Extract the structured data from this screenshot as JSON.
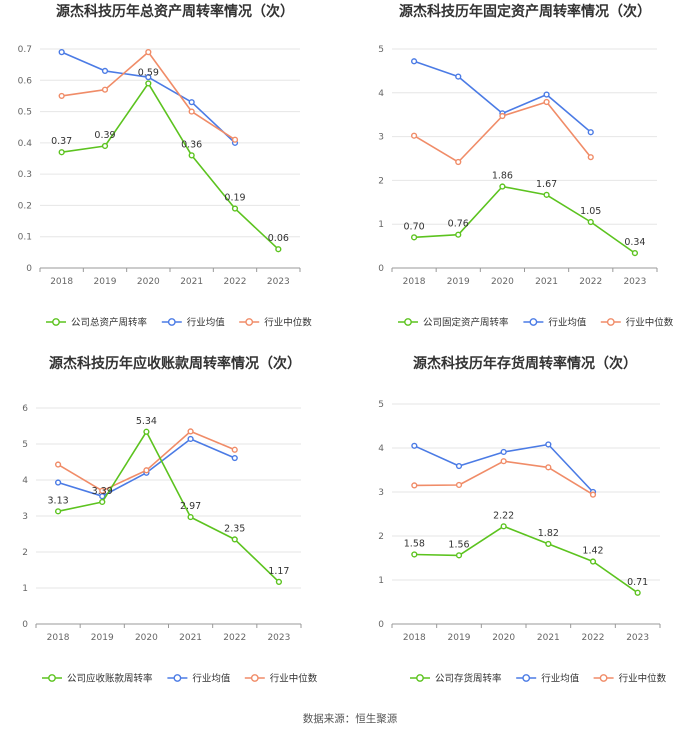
{
  "colors": {
    "company": "#5cc31f",
    "industry_avg": "#4b7be5",
    "industry_median": "#f08c68",
    "grid": "#e6e6e6",
    "axis": "#999999"
  },
  "legend_labels": {
    "industry_avg": "行业均值",
    "industry_median": "行业中位数"
  },
  "chart_data": [
    {
      "type": "line",
      "title": "源杰科技历年总资产周转率情况（次）",
      "x": [
        "2018",
        "2019",
        "2020",
        "2021",
        "2022",
        "2023"
      ],
      "ylim": [
        0,
        0.7
      ],
      "yticks": [
        "0",
        "0.1",
        "0.2",
        "0.3",
        "0.4",
        "0.5",
        "0.6",
        "0.7"
      ],
      "grid": true,
      "legend_position": "bottom",
      "series": [
        {
          "name": "公司总资产周转率",
          "role": "company",
          "values": [
            0.37,
            0.39,
            0.59,
            0.36,
            0.19,
            0.06
          ],
          "labels": [
            "0.37",
            "0.39",
            "0.59",
            "0.36",
            "0.19",
            "0.06"
          ]
        },
        {
          "name": "行业均值",
          "role": "industry_avg",
          "values": [
            0.69,
            0.63,
            0.61,
            0.53,
            0.4,
            null
          ]
        },
        {
          "name": "行业中位数",
          "role": "industry_median",
          "values": [
            0.55,
            0.57,
            0.69,
            0.5,
            0.41,
            null
          ]
        }
      ]
    },
    {
      "type": "line",
      "title": "源杰科技历年固定资产周转率情况（次）",
      "x": [
        "2018",
        "2019",
        "2020",
        "2021",
        "2022",
        "2023"
      ],
      "ylim": [
        0,
        5
      ],
      "yticks": [
        "0",
        "1",
        "2",
        "3",
        "4",
        "5"
      ],
      "grid": true,
      "legend_position": "bottom",
      "series": [
        {
          "name": "公司固定资产周转率",
          "role": "company",
          "values": [
            0.7,
            0.76,
            1.86,
            1.67,
            1.05,
            0.34
          ],
          "labels": [
            "0.70",
            "0.76",
            "1.86",
            "1.67",
            "1.05",
            "0.34"
          ]
        },
        {
          "name": "行业均值",
          "role": "industry_avg",
          "values": [
            4.72,
            4.37,
            3.53,
            3.96,
            3.1,
            null
          ]
        },
        {
          "name": "行业中位数",
          "role": "industry_median",
          "values": [
            3.02,
            2.42,
            3.47,
            3.79,
            2.53,
            null
          ]
        }
      ]
    },
    {
      "type": "line",
      "title": "源杰科技历年应收账款周转率情况（次）",
      "x": [
        "2018",
        "2019",
        "2020",
        "2021",
        "2022",
        "2023"
      ],
      "ylim": [
        0,
        6
      ],
      "yticks": [
        "0",
        "1",
        "2",
        "3",
        "4",
        "5",
        "6"
      ],
      "grid": true,
      "legend_position": "bottom",
      "series": [
        {
          "name": "公司应收账款周转率",
          "role": "company",
          "values": [
            3.13,
            3.39,
            5.34,
            2.97,
            2.35,
            1.17
          ],
          "labels": [
            "3.13",
            "3.39",
            "5.34",
            "2.97",
            "2.35",
            "1.17"
          ]
        },
        {
          "name": "行业均值",
          "role": "industry_avg",
          "values": [
            3.93,
            3.55,
            4.2,
            5.14,
            4.61,
            null
          ]
        },
        {
          "name": "行业中位数",
          "role": "industry_median",
          "values": [
            4.43,
            3.7,
            4.27,
            5.35,
            4.84,
            null
          ]
        }
      ]
    },
    {
      "type": "line",
      "title": "源杰科技历年存货周转率情况（次）",
      "x": [
        "2018",
        "2019",
        "2020",
        "2021",
        "2022",
        "2023"
      ],
      "ylim": [
        0,
        5
      ],
      "yticks": [
        "0",
        "1",
        "2",
        "3",
        "4",
        "5"
      ],
      "grid": true,
      "legend_position": "bottom",
      "series": [
        {
          "name": "公司存货周转率",
          "role": "company",
          "values": [
            1.58,
            1.56,
            2.22,
            1.82,
            1.42,
            0.71
          ],
          "labels": [
            "1.58",
            "1.56",
            "2.22",
            "1.82",
            "1.42",
            "0.71"
          ]
        },
        {
          "name": "行业均值",
          "role": "industry_avg",
          "values": [
            4.05,
            3.59,
            3.91,
            4.08,
            3.0,
            null
          ]
        },
        {
          "name": "行业中位数",
          "role": "industry_median",
          "values": [
            3.15,
            3.16,
            3.7,
            3.56,
            2.94,
            null
          ]
        }
      ]
    }
  ],
  "source_text": "数据来源：恒生聚源"
}
